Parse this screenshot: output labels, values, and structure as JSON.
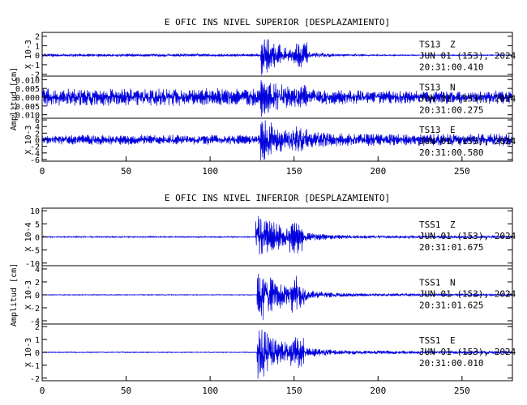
{
  "colors": {
    "trace": "#0000dd",
    "axes": "#000000",
    "background": "#ffffff"
  },
  "chart_data": [
    {
      "type": "line",
      "title": "E OFIC INS NIVEL SUPERIOR [DESPLAZAMIENTO]",
      "ylabel": "Amplitud [cm]",
      "xlim": [
        0,
        280
      ],
      "x_ticks": [
        "0",
        "50",
        "100",
        "150",
        "200",
        "250"
      ],
      "panels": [
        {
          "station": "TS13",
          "component": "Z",
          "date": "JUN 01 (153), 2024",
          "time": "20:31:00.410",
          "scale_label": "X 10-3",
          "y_ticks": [
            "2",
            "1",
            "0",
            "-1",
            "-2"
          ],
          "ylim": [
            -2.2,
            2.4
          ],
          "onset_s": 130,
          "peak": 2.0,
          "pre_noise": 0.12,
          "coda_level": 0.05
        },
        {
          "station": "TS13",
          "component": "N",
          "date": "JUN 01 (153), 2024",
          "time": "20:31:00.275",
          "scale_label": "",
          "y_ticks": [
            "0.010",
            "0.005",
            "0.000",
            "-0.005",
            "-0.010"
          ],
          "ylim": [
            -0.012,
            0.012
          ],
          "onset_s": 130,
          "peak": 0.01,
          "pre_noise": 0.004,
          "coda_level": 0.003
        },
        {
          "station": "TS13",
          "component": "E",
          "date": "JUN 01 (153), 2024",
          "time": "20:31:00.580",
          "scale_label": "X 10-3",
          "y_ticks": [
            "6",
            "4",
            "2",
            "0",
            "-2",
            "-4",
            "-6"
          ],
          "ylim": [
            -6.5,
            6.5
          ],
          "onset_s": 130,
          "peak": 6.0,
          "pre_noise": 1.2,
          "coda_level": 1.5
        }
      ]
    },
    {
      "type": "line",
      "title": "E OFIC INS NIVEL INFERIOR [DESPLAZAMIENTO]",
      "ylabel": "Amplitud [cm]",
      "xlim": [
        0,
        280
      ],
      "x_ticks": [
        "0",
        "50",
        "100",
        "150",
        "200",
        "250"
      ],
      "panels": [
        {
          "station": "TSS1",
          "component": "Z",
          "date": "JUN 01 (153), 2024",
          "time": "20:31:01.675",
          "scale_label": "X 10-4",
          "y_ticks": [
            "10",
            "5",
            "0",
            "-5",
            "-10"
          ],
          "ylim": [
            -11,
            11
          ],
          "onset_s": 127,
          "peak": 10,
          "pre_noise": 0.2,
          "coda_level": 0.4
        },
        {
          "station": "TSS1",
          "component": "N",
          "date": "JUN 01 (153), 2024",
          "time": "20:31:01.625",
          "scale_label": "X 10-3",
          "y_ticks": [
            "4",
            "2",
            "0",
            "-2",
            "-4"
          ],
          "ylim": [
            -4.5,
            4.5
          ],
          "onset_s": 128,
          "peak": 4.2,
          "pre_noise": 0.05,
          "coda_level": 0.15
        },
        {
          "station": "TSS1",
          "component": "E",
          "date": "JUN 01 (153), 2024",
          "time": "20:31:00.010",
          "scale_label": "X 10-3",
          "y_ticks": [
            "2",
            "1",
            "0",
            "-1",
            "-2"
          ],
          "ylim": [
            -2.2,
            2.2
          ],
          "onset_s": 128,
          "peak": 1.9,
          "pre_noise": 0.03,
          "coda_level": 0.1
        }
      ]
    }
  ]
}
